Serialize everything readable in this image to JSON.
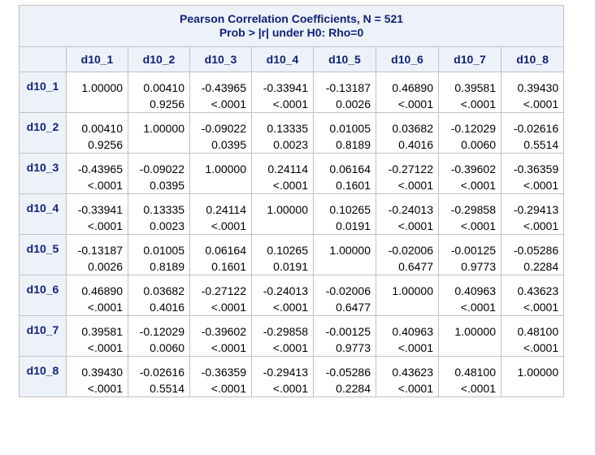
{
  "title_line1": "Pearson Correlation Coefficients, N = 521",
  "title_line2": "Prob > |r| under H0: Rho=0",
  "columns": [
    "d10_1",
    "d10_2",
    "d10_3",
    "d10_4",
    "d10_5",
    "d10_6",
    "d10_7",
    "d10_8"
  ],
  "rows": [
    {
      "label": "d10_1",
      "cells": [
        {
          "r": "1.00000",
          "p": ""
        },
        {
          "r": "0.00410",
          "p": "0.9256"
        },
        {
          "r": "-0.43965",
          "p": "<.0001"
        },
        {
          "r": "-0.33941",
          "p": "<.0001"
        },
        {
          "r": "-0.13187",
          "p": "0.0026"
        },
        {
          "r": "0.46890",
          "p": "<.0001"
        },
        {
          "r": "0.39581",
          "p": "<.0001"
        },
        {
          "r": "0.39430",
          "p": "<.0001"
        }
      ]
    },
    {
      "label": "d10_2",
      "cells": [
        {
          "r": "0.00410",
          "p": "0.9256"
        },
        {
          "r": "1.00000",
          "p": ""
        },
        {
          "r": "-0.09022",
          "p": "0.0395"
        },
        {
          "r": "0.13335",
          "p": "0.0023"
        },
        {
          "r": "0.01005",
          "p": "0.8189"
        },
        {
          "r": "0.03682",
          "p": "0.4016"
        },
        {
          "r": "-0.12029",
          "p": "0.0060"
        },
        {
          "r": "-0.02616",
          "p": "0.5514"
        }
      ]
    },
    {
      "label": "d10_3",
      "cells": [
        {
          "r": "-0.43965",
          "p": "<.0001"
        },
        {
          "r": "-0.09022",
          "p": "0.0395"
        },
        {
          "r": "1.00000",
          "p": ""
        },
        {
          "r": "0.24114",
          "p": "<.0001"
        },
        {
          "r": "0.06164",
          "p": "0.1601"
        },
        {
          "r": "-0.27122",
          "p": "<.0001"
        },
        {
          "r": "-0.39602",
          "p": "<.0001"
        },
        {
          "r": "-0.36359",
          "p": "<.0001"
        }
      ]
    },
    {
      "label": "d10_4",
      "cells": [
        {
          "r": "-0.33941",
          "p": "<.0001"
        },
        {
          "r": "0.13335",
          "p": "0.0023"
        },
        {
          "r": "0.24114",
          "p": "<.0001"
        },
        {
          "r": "1.00000",
          "p": ""
        },
        {
          "r": "0.10265",
          "p": "0.0191"
        },
        {
          "r": "-0.24013",
          "p": "<.0001"
        },
        {
          "r": "-0.29858",
          "p": "<.0001"
        },
        {
          "r": "-0.29413",
          "p": "<.0001"
        }
      ]
    },
    {
      "label": "d10_5",
      "cells": [
        {
          "r": "-0.13187",
          "p": "0.0026"
        },
        {
          "r": "0.01005",
          "p": "0.8189"
        },
        {
          "r": "0.06164",
          "p": "0.1601"
        },
        {
          "r": "0.10265",
          "p": "0.0191"
        },
        {
          "r": "1.00000",
          "p": ""
        },
        {
          "r": "-0.02006",
          "p": "0.6477"
        },
        {
          "r": "-0.00125",
          "p": "0.9773"
        },
        {
          "r": "-0.05286",
          "p": "0.2284"
        }
      ]
    },
    {
      "label": "d10_6",
      "cells": [
        {
          "r": "0.46890",
          "p": "<.0001"
        },
        {
          "r": "0.03682",
          "p": "0.4016"
        },
        {
          "r": "-0.27122",
          "p": "<.0001"
        },
        {
          "r": "-0.24013",
          "p": "<.0001"
        },
        {
          "r": "-0.02006",
          "p": "0.6477"
        },
        {
          "r": "1.00000",
          "p": ""
        },
        {
          "r": "0.40963",
          "p": "<.0001"
        },
        {
          "r": "0.43623",
          "p": "<.0001"
        }
      ]
    },
    {
      "label": "d10_7",
      "cells": [
        {
          "r": "0.39581",
          "p": "<.0001"
        },
        {
          "r": "-0.12029",
          "p": "0.0060"
        },
        {
          "r": "-0.39602",
          "p": "<.0001"
        },
        {
          "r": "-0.29858",
          "p": "<.0001"
        },
        {
          "r": "-0.00125",
          "p": "0.9773"
        },
        {
          "r": "0.40963",
          "p": "<.0001"
        },
        {
          "r": "1.00000",
          "p": ""
        },
        {
          "r": "0.48100",
          "p": "<.0001"
        }
      ]
    },
    {
      "label": "d10_8",
      "cells": [
        {
          "r": "0.39430",
          "p": "<.0001"
        },
        {
          "r": "-0.02616",
          "p": "0.5514"
        },
        {
          "r": "-0.36359",
          "p": "<.0001"
        },
        {
          "r": "-0.29413",
          "p": "<.0001"
        },
        {
          "r": "-0.05286",
          "p": "0.2284"
        },
        {
          "r": "0.43623",
          "p": "<.0001"
        },
        {
          "r": "0.48100",
          "p": "<.0001"
        },
        {
          "r": "1.00000",
          "p": ""
        }
      ]
    }
  ]
}
